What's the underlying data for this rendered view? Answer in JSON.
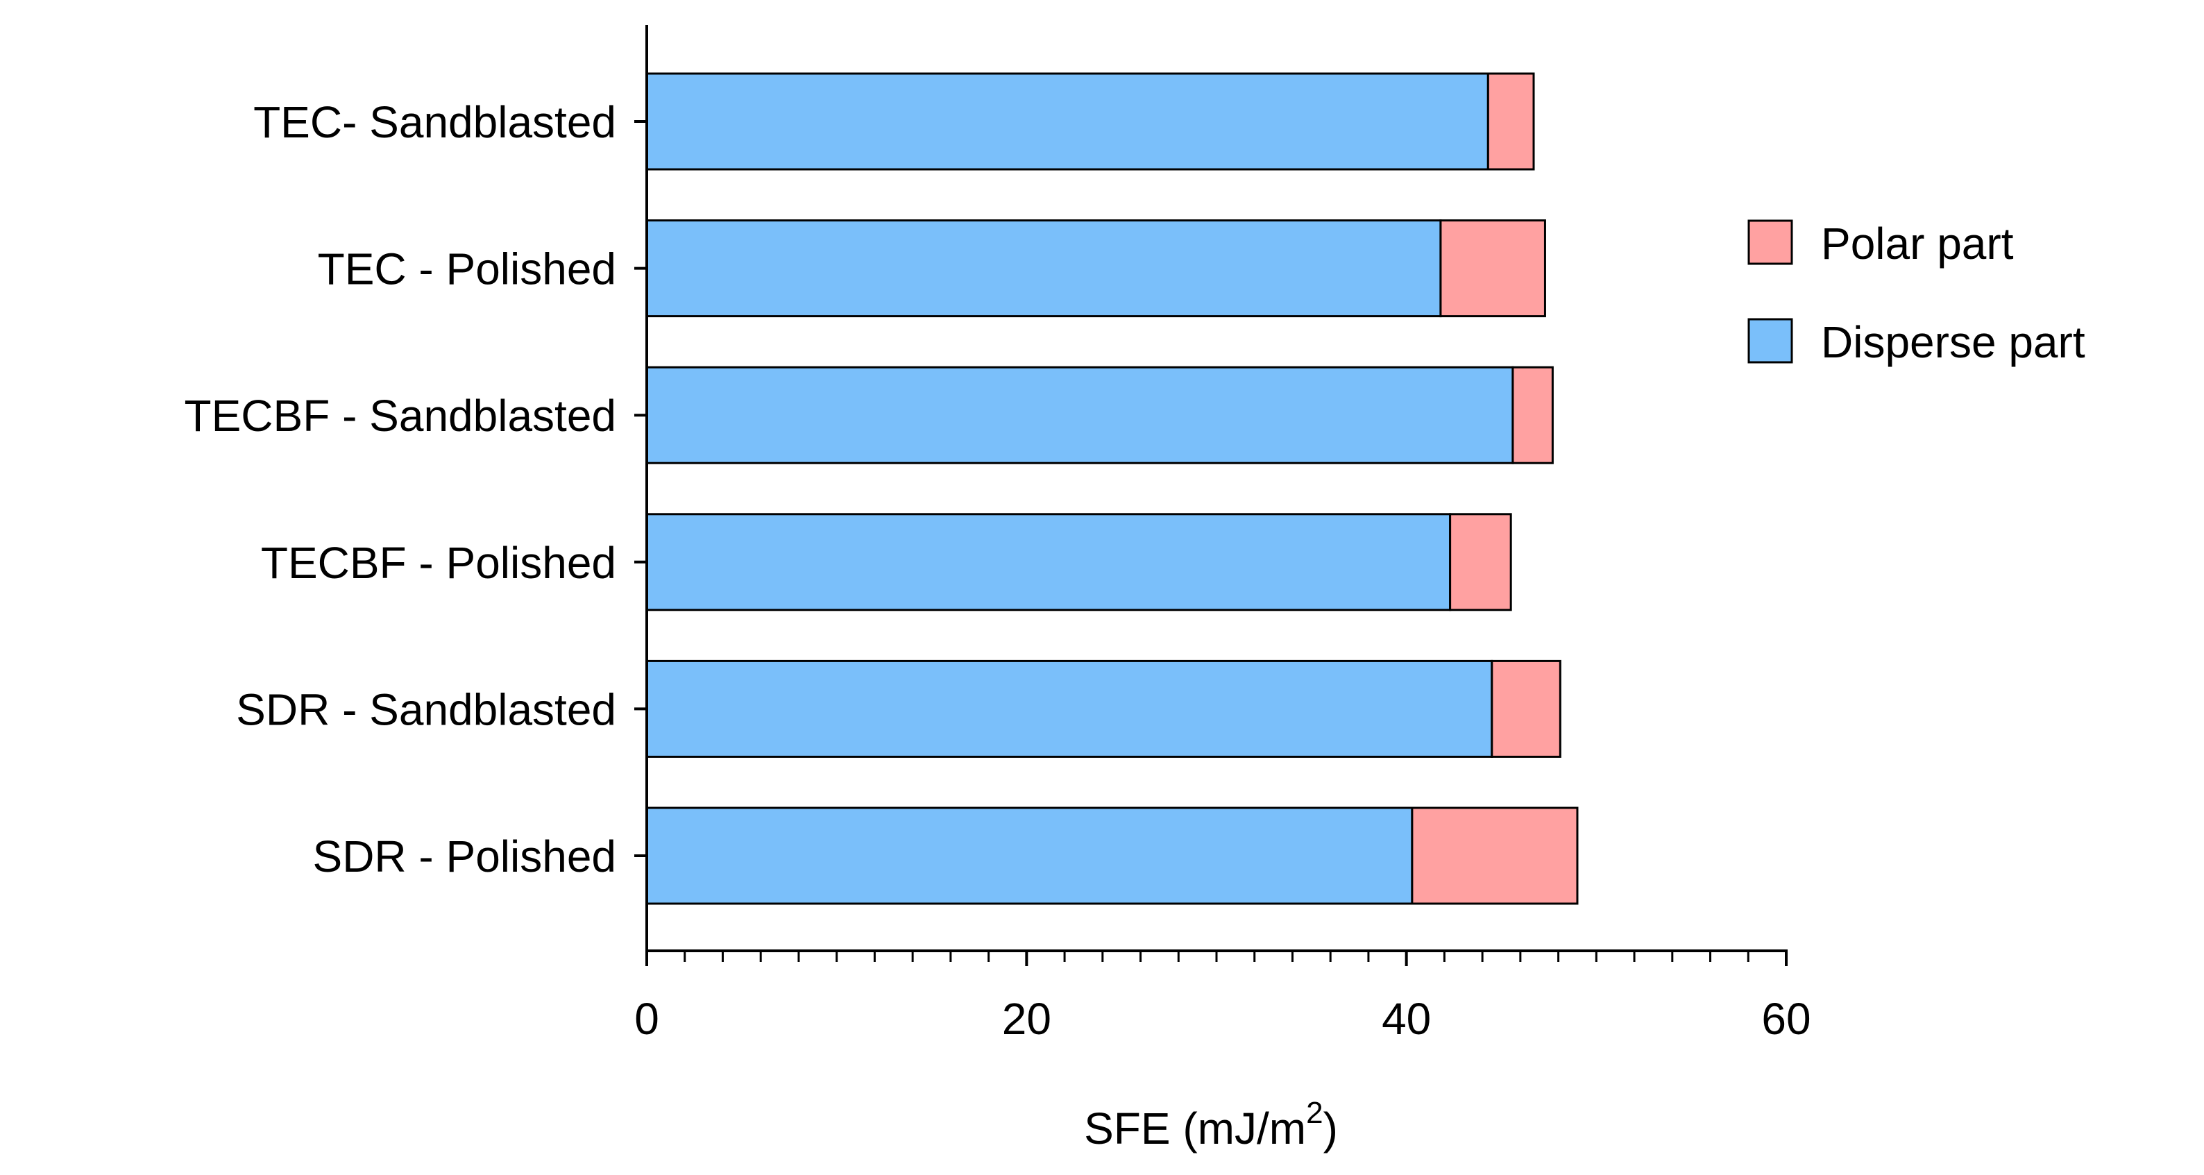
{
  "chart_data": {
    "type": "bar",
    "orientation": "horizontal",
    "stacked": true,
    "categories": [
      "TEC- Sandblasted",
      "TEC - Polished",
      "TECBF - Sandblasted",
      "TECBF - Polished",
      "SDR - Sandblasted",
      "SDR - Polished"
    ],
    "series": [
      {
        "name": "Disperse part",
        "color": "#7abffa",
        "values": [
          44.3,
          41.8,
          45.6,
          42.3,
          44.5,
          40.3
        ]
      },
      {
        "name": "Polar part",
        "color": "#ffa1a1",
        "values": [
          2.4,
          5.5,
          2.1,
          3.2,
          3.6,
          8.7
        ]
      }
    ],
    "legend_order": [
      "Polar part",
      "Disperse part"
    ],
    "xlabel": "SFE (mJ/m",
    "xlabel_superscript": "2",
    "xlabel_suffix": ")",
    "xlim": [
      0,
      60
    ],
    "xticks": [
      "0",
      "20",
      "40",
      "60"
    ],
    "minor_tick_step": 2,
    "grid": false,
    "legend_position": "right"
  }
}
